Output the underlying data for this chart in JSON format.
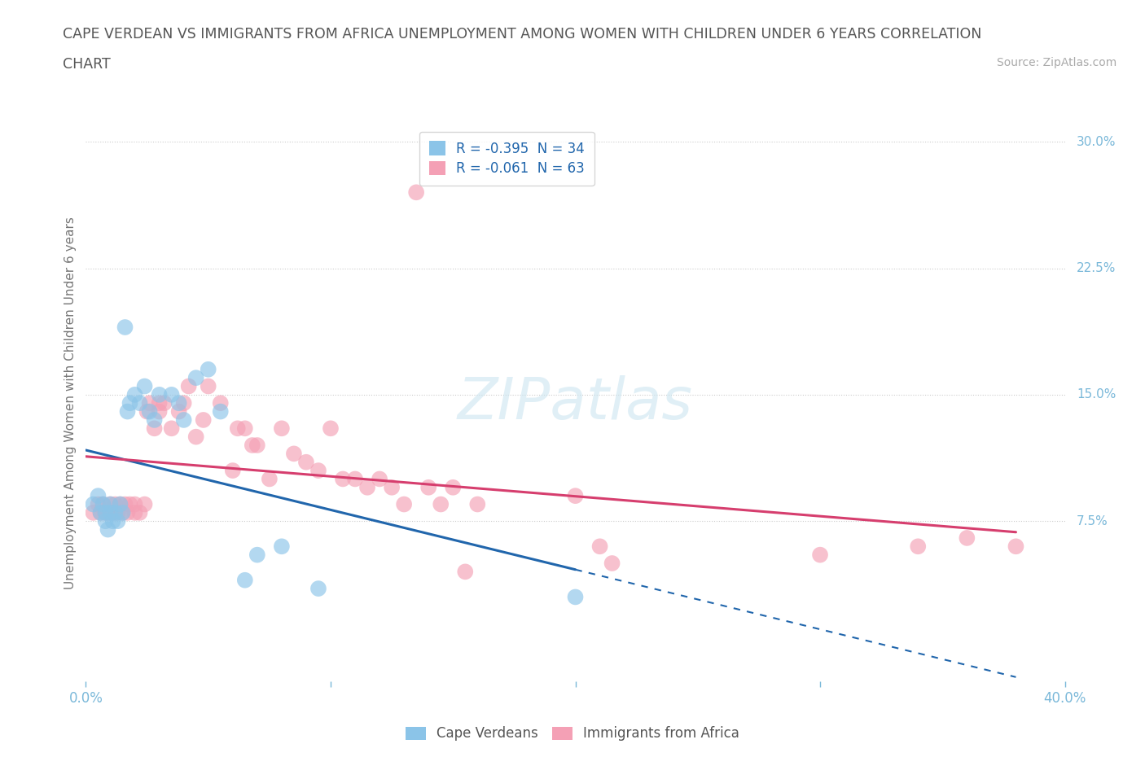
{
  "title_line1": "CAPE VERDEAN VS IMMIGRANTS FROM AFRICA UNEMPLOYMENT AMONG WOMEN WITH CHILDREN UNDER 6 YEARS CORRELATION",
  "title_line2": "CHART",
  "source_text": "Source: ZipAtlas.com",
  "ylabel": "Unemployment Among Women with Children Under 6 years",
  "xlim": [
    0.0,
    0.4
  ],
  "ylim": [
    -0.02,
    0.31
  ],
  "yticks_right": [
    0.075,
    0.15,
    0.225,
    0.3
  ],
  "ytick_right_labels": [
    "7.5%",
    "15.0%",
    "22.5%",
    "30.0%"
  ],
  "grid_color": "#cccccc",
  "background_color": "#ffffff",
  "watermark_text": "ZIPatlas",
  "legend_r1": "R = -0.395",
  "legend_n1": "N = 34",
  "legend_r2": "R = -0.061",
  "legend_n2": "N = 63",
  "color_blue": "#8bc4e8",
  "color_pink": "#f4a0b5",
  "color_blue_line": "#2166ac",
  "color_pink_line": "#d63e6e",
  "color_axis": "#7ab8d9",
  "title_color": "#666666",
  "cape_verdean_x": [
    0.003,
    0.005,
    0.006,
    0.007,
    0.008,
    0.008,
    0.009,
    0.01,
    0.01,
    0.011,
    0.012,
    0.013,
    0.014,
    0.015,
    0.016,
    0.017,
    0.018,
    0.02,
    0.022,
    0.024,
    0.026,
    0.028,
    0.03,
    0.035,
    0.038,
    0.04,
    0.045,
    0.05,
    0.055,
    0.065,
    0.07,
    0.08,
    0.095,
    0.2
  ],
  "cape_verdean_y": [
    0.085,
    0.09,
    0.08,
    0.085,
    0.08,
    0.075,
    0.07,
    0.085,
    0.08,
    0.075,
    0.08,
    0.075,
    0.085,
    0.08,
    0.19,
    0.14,
    0.145,
    0.15,
    0.145,
    0.155,
    0.14,
    0.135,
    0.15,
    0.15,
    0.145,
    0.135,
    0.16,
    0.165,
    0.14,
    0.04,
    0.055,
    0.06,
    0.035,
    0.03
  ],
  "africa_x": [
    0.003,
    0.005,
    0.006,
    0.007,
    0.008,
    0.009,
    0.01,
    0.011,
    0.012,
    0.013,
    0.014,
    0.015,
    0.016,
    0.017,
    0.018,
    0.02,
    0.02,
    0.022,
    0.024,
    0.025,
    0.026,
    0.028,
    0.03,
    0.03,
    0.032,
    0.035,
    0.038,
    0.04,
    0.042,
    0.045,
    0.048,
    0.05,
    0.055,
    0.06,
    0.062,
    0.065,
    0.068,
    0.07,
    0.075,
    0.08,
    0.085,
    0.09,
    0.095,
    0.1,
    0.105,
    0.11,
    0.115,
    0.12,
    0.125,
    0.13,
    0.135,
    0.14,
    0.145,
    0.15,
    0.155,
    0.16,
    0.2,
    0.21,
    0.215,
    0.3,
    0.34,
    0.36,
    0.38
  ],
  "africa_y": [
    0.08,
    0.085,
    0.08,
    0.085,
    0.08,
    0.08,
    0.085,
    0.08,
    0.085,
    0.08,
    0.085,
    0.08,
    0.085,
    0.08,
    0.085,
    0.08,
    0.085,
    0.08,
    0.085,
    0.14,
    0.145,
    0.13,
    0.14,
    0.145,
    0.145,
    0.13,
    0.14,
    0.145,
    0.155,
    0.125,
    0.135,
    0.155,
    0.145,
    0.105,
    0.13,
    0.13,
    0.12,
    0.12,
    0.1,
    0.13,
    0.115,
    0.11,
    0.105,
    0.13,
    0.1,
    0.1,
    0.095,
    0.1,
    0.095,
    0.085,
    0.27,
    0.095,
    0.085,
    0.095,
    0.045,
    0.085,
    0.09,
    0.06,
    0.05,
    0.055,
    0.06,
    0.065,
    0.06
  ]
}
